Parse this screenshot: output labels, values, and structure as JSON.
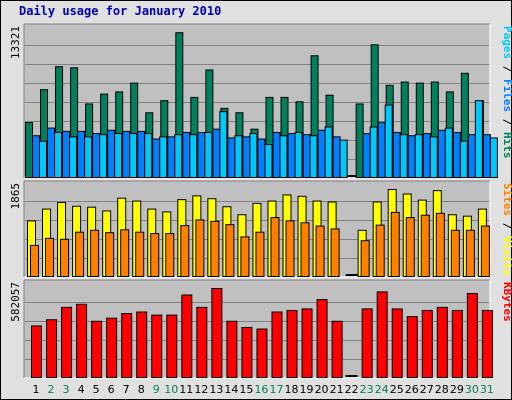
{
  "title": "Daily usage for January 2010",
  "colors": {
    "hits": "#00805c",
    "files": "#0080ff",
    "pages": "#00c8f8",
    "visits": "#ffff00",
    "sites": "#ff8000",
    "kbytes": "#ff0000",
    "weekday_label": "#000000",
    "weekend_label": "#00805c",
    "panel_bg": "#c0c0c0"
  },
  "chart_data": [
    {
      "type": "bar",
      "id": "requests",
      "ymax_label": "13321",
      "ylim": [
        0,
        13321
      ],
      "right_label": [
        {
          "text": "Pages",
          "color": "#00c8f8"
        },
        {
          "text": " / ",
          "color": "#000000"
        },
        {
          "text": "Files",
          "color": "#0080ff"
        },
        {
          "text": " / ",
          "color": "#000000"
        },
        {
          "text": "Hits",
          "color": "#00805c"
        }
      ],
      "categories": [
        "1",
        "2",
        "3",
        "4",
        "5",
        "6",
        "7",
        "8",
        "9",
        "10",
        "11",
        "12",
        "13",
        "14",
        "15",
        "16",
        "17",
        "18",
        "19",
        "20",
        "21",
        "22",
        "23",
        "24",
        "25",
        "26",
        "27",
        "28",
        "29",
        "30",
        "31"
      ],
      "series": [
        {
          "name": "Hits",
          "values": [
            5100,
            8100,
            10200,
            10100,
            6800,
            7700,
            7900,
            8700,
            6000,
            7100,
            13300,
            7400,
            9900,
            6400,
            6000,
            4500,
            7400,
            7400,
            7000,
            11200,
            7600,
            0,
            6800,
            12200,
            8500,
            8800,
            8700,
            8800,
            7900,
            9600,
            7100
          ]
        },
        {
          "name": "Files",
          "values": [
            3900,
            4600,
            4300,
            4300,
            4100,
            4400,
            4300,
            4300,
            3600,
            3800,
            4200,
            4200,
            4500,
            3700,
            3800,
            3600,
            4200,
            4100,
            4000,
            4400,
            3800,
            0,
            4100,
            5100,
            4200,
            3900,
            4100,
            4400,
            4200,
            4000,
            4000
          ]
        },
        {
          "name": "Pages",
          "values": [
            3400,
            4200,
            3800,
            3800,
            4000,
            4100,
            4100,
            4100,
            3800,
            4000,
            4000,
            4200,
            6100,
            3900,
            4100,
            3100,
            3900,
            4200,
            3900,
            4700,
            3500,
            0,
            4700,
            6700,
            4000,
            4000,
            3800,
            4600,
            3400,
            7100,
            3700
          ]
        }
      ]
    },
    {
      "type": "bar",
      "id": "visits",
      "ymax_label": "1865",
      "ylim": [
        0,
        1865
      ],
      "right_label": [
        {
          "text": "Sites",
          "color": "#ff8000"
        },
        {
          "text": " / ",
          "color": "#000000"
        },
        {
          "text": "Visits",
          "color": "#ffff00"
        }
      ],
      "categories": [
        "1",
        "2",
        "3",
        "4",
        "5",
        "6",
        "7",
        "8",
        "9",
        "10",
        "11",
        "12",
        "13",
        "14",
        "15",
        "16",
        "17",
        "18",
        "19",
        "20",
        "21",
        "22",
        "23",
        "24",
        "25",
        "26",
        "27",
        "28",
        "29",
        "30",
        "31"
      ],
      "series": [
        {
          "name": "Visits",
          "values": [
            1200,
            1450,
            1590,
            1510,
            1490,
            1410,
            1680,
            1620,
            1450,
            1390,
            1650,
            1730,
            1670,
            1500,
            1330,
            1570,
            1620,
            1750,
            1720,
            1620,
            1600,
            0,
            1000,
            1600,
            1865,
            1770,
            1640,
            1840,
            1330,
            1300,
            1450
          ]
        },
        {
          "name": "Sites",
          "values": [
            680,
            830,
            810,
            960,
            1000,
            950,
            1010,
            960,
            930,
            930,
            1100,
            1220,
            1190,
            1120,
            860,
            960,
            1270,
            1200,
            1160,
            1090,
            1030,
            0,
            780,
            1110,
            1380,
            1270,
            1320,
            1360,
            1000,
            1000,
            1090
          ]
        }
      ]
    },
    {
      "type": "bar",
      "id": "kbytes",
      "ymax_label": "582057",
      "ylim": [
        0,
        582057
      ],
      "right_label": [
        {
          "text": "KBytes",
          "color": "#ff0000"
        }
      ],
      "categories": [
        "1",
        "2",
        "3",
        "4",
        "5",
        "6",
        "7",
        "8",
        "9",
        "10",
        "11",
        "12",
        "13",
        "14",
        "15",
        "16",
        "17",
        "18",
        "19",
        "20",
        "21",
        "22",
        "23",
        "24",
        "25",
        "26",
        "27",
        "28",
        "29",
        "30",
        "31"
      ],
      "series": [
        {
          "name": "KBytes",
          "values": [
            340000,
            380000,
            460000,
            480000,
            370000,
            390000,
            420000,
            430000,
            410000,
            410000,
            540000,
            460000,
            582057,
            370000,
            330000,
            320000,
            430000,
            440000,
            450000,
            510000,
            370000,
            0,
            450000,
            560000,
            450000,
            400000,
            440000,
            460000,
            440000,
            550000,
            440000
          ]
        }
      ]
    }
  ],
  "day_labels": {
    "weekend_days": [
      "2",
      "3",
      "9",
      "10",
      "16",
      "17",
      "23",
      "24",
      "30",
      "31"
    ]
  }
}
